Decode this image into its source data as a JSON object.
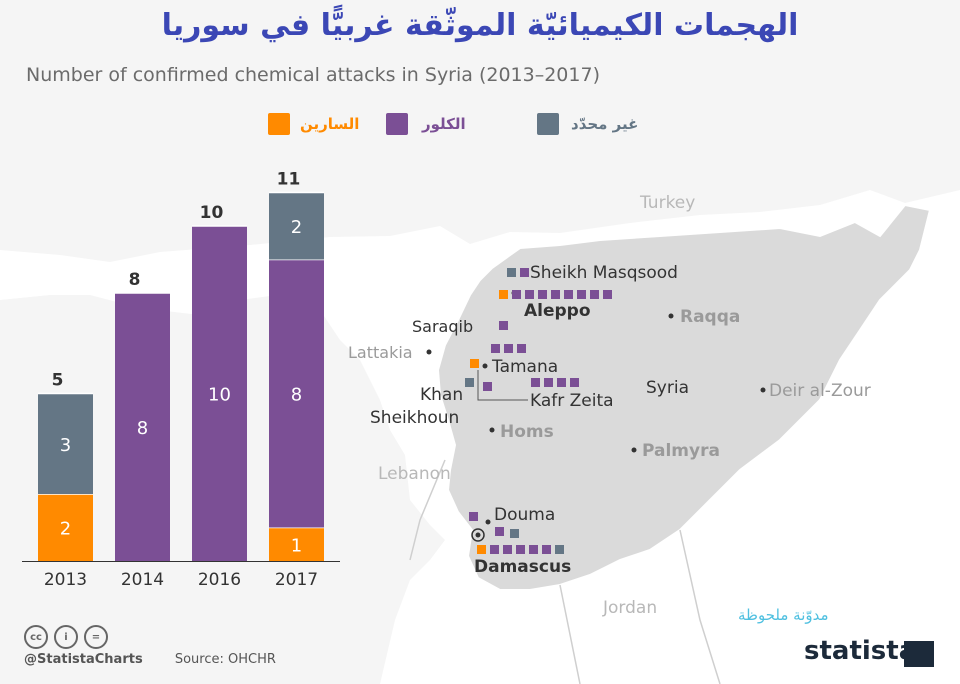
{
  "title": "الهجمات الكيميائيّة الموثّقة غربيًّا في سوريا",
  "subtitle": "Number of confirmed chemical attacks in Syria (2013–2017)",
  "legend": [
    {
      "label": "السارين",
      "color": "#ff8a00"
    },
    {
      "label": "الكلور",
      "color": "#7b4f95"
    },
    {
      "label": "غير محدّد",
      "color": "#647685"
    }
  ],
  "chart_data": {
    "type": "bar",
    "stacked": true,
    "title": "Number of confirmed chemical attacks in Syria (2013–2017)",
    "categories": [
      "2013",
      "2014",
      "2016",
      "2017"
    ],
    "series": [
      {
        "name": "السارين",
        "color": "#ff8a00",
        "values": [
          2,
          0,
          0,
          1
        ]
      },
      {
        "name": "الكلور",
        "color": "#7b4f95",
        "values": [
          0,
          8,
          10,
          8
        ]
      },
      {
        "name": "غير محدّد",
        "color": "#647685",
        "values": [
          3,
          0,
          0,
          2
        ]
      }
    ],
    "totals": [
      5,
      8,
      10,
      11
    ],
    "xlabel": "",
    "ylabel": "",
    "ylim": [
      0,
      11
    ]
  },
  "map": {
    "countries": [
      {
        "name": "Turkey"
      },
      {
        "name": "Lebanon"
      },
      {
        "name": "Jordan"
      },
      {
        "name": "Syria"
      }
    ],
    "cities": [
      {
        "name": "Sheikh Masqsood",
        "bold": false,
        "attacks": [
          "unknown",
          "chlorine"
        ]
      },
      {
        "name": "Aleppo",
        "bold": true,
        "attacks": [
          "sarin",
          "chlorine",
          "chlorine",
          "chlorine",
          "chlorine",
          "chlorine",
          "chlorine",
          "chlorine",
          "chlorine"
        ]
      },
      {
        "name": "Saraqib",
        "bold": false,
        "attacks": [
          "chlorine"
        ]
      },
      {
        "name": "Raqqa",
        "bold": true,
        "attacks": []
      },
      {
        "name": "Lattakia",
        "bold": false,
        "attacks": []
      },
      {
        "name": "Tamana",
        "bold": false,
        "attacks": [
          "sarin",
          "chlorine",
          "chlorine",
          "chlorine"
        ]
      },
      {
        "name": "Khan Sheikhoun",
        "bold": false,
        "attacks": [
          "unknown"
        ]
      },
      {
        "name": "Kafr Zeita",
        "bold": false,
        "attacks": [
          "chlorine",
          "chlorine",
          "chlorine",
          "chlorine",
          "chlorine"
        ]
      },
      {
        "name": "Homs",
        "bold": true,
        "attacks": []
      },
      {
        "name": "Deir al-Zour",
        "bold": false,
        "attacks": []
      },
      {
        "name": "Palmyra",
        "bold": true,
        "attacks": []
      },
      {
        "name": "Douma",
        "bold": false,
        "attacks": [
          "chlorine",
          "chlorine",
          "unknown"
        ]
      },
      {
        "name": "Damascus",
        "bold": true,
        "attacks": [
          "sarin",
          "chlorine",
          "chlorine",
          "chlorine",
          "chlorine",
          "chlorine",
          "unknown"
        ]
      }
    ]
  },
  "footer": {
    "handle": "@StatistaCharts",
    "source": "Source: OHCHR",
    "brand": "statista",
    "watermark": "مدوّنة ملحوظة",
    "license_icons": [
      "cc",
      "i",
      "="
    ]
  }
}
